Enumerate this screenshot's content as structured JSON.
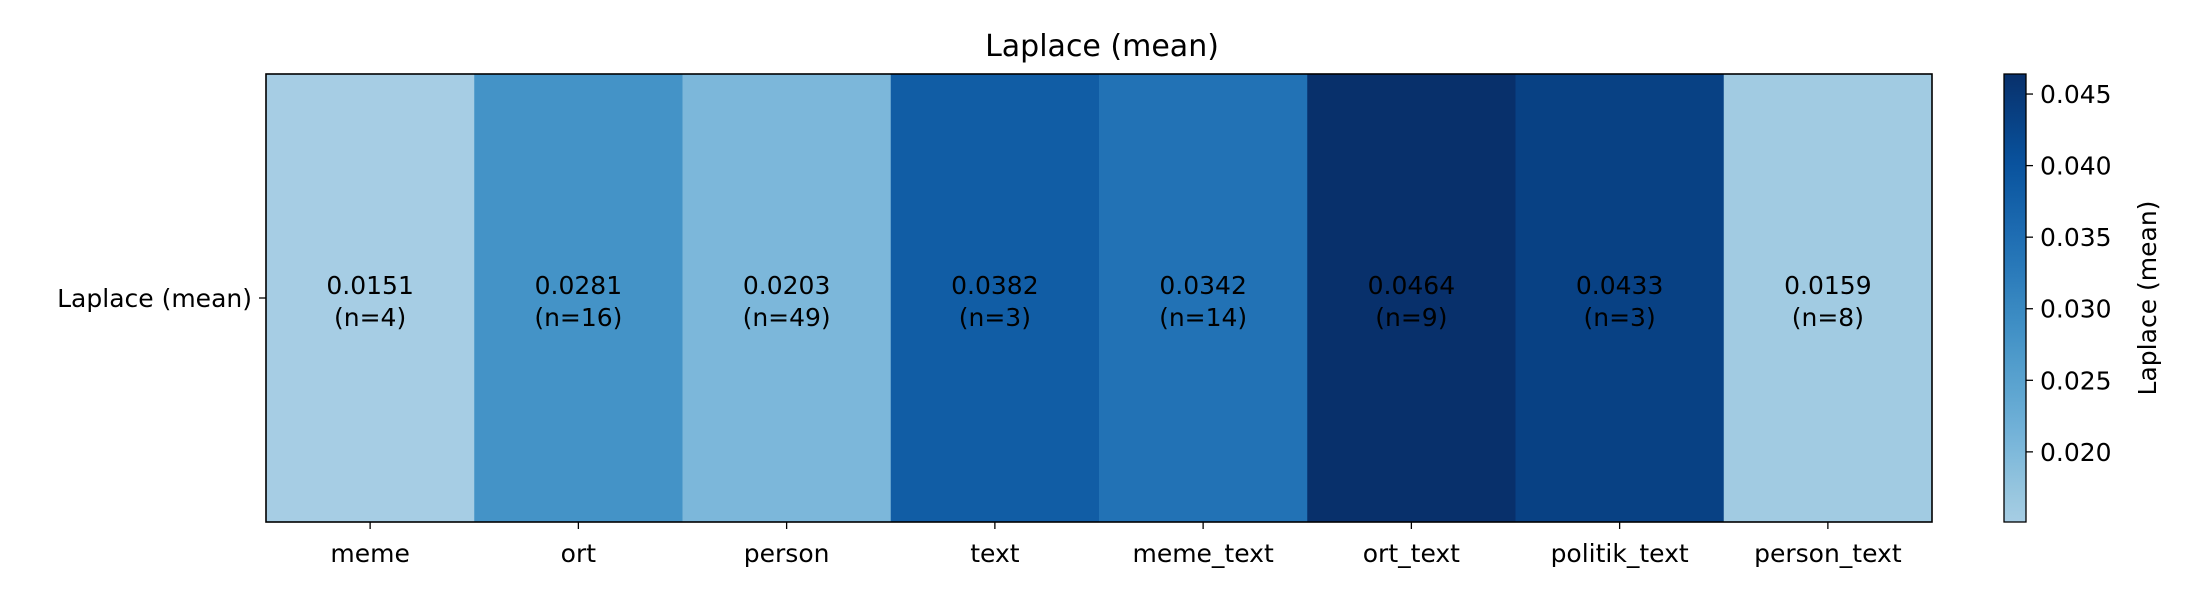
{
  "chart_data": {
    "type": "heatmap",
    "title": "Laplace (mean)",
    "row_labels": [
      "Laplace (mean)"
    ],
    "categories": [
      "meme",
      "ort",
      "person",
      "text",
      "meme_text",
      "ort_text",
      "politik_text",
      "person_text"
    ],
    "values": [
      0.0151,
      0.0281,
      0.0203,
      0.0382,
      0.0342,
      0.0464,
      0.0433,
      0.0159
    ],
    "counts": [
      "(n=4)",
      "(n=16)",
      "(n=49)",
      "(n=3)",
      "(n=14)",
      "(n=9)",
      "(n=3)",
      "(n=8)"
    ],
    "cell_labels": [
      "0.0151",
      "0.0281",
      "0.0203",
      "0.0382",
      "0.0342",
      "0.0464",
      "0.0433",
      "0.0159"
    ],
    "colormap": "Blues",
    "vmin": 0.0151,
    "vmax": 0.0464,
    "colorbar": {
      "label": "Laplace (mean)",
      "ticks": [
        0.02,
        0.025,
        0.03,
        0.035,
        0.04,
        0.045
      ],
      "tick_labels": [
        "0.020",
        "0.025",
        "0.030",
        "0.035",
        "0.040",
        "0.045"
      ]
    },
    "grid": false
  }
}
